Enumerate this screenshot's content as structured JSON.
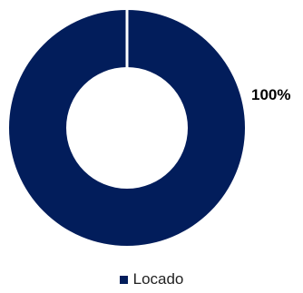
{
  "chart_data": {
    "type": "pie",
    "title": "",
    "labels": [
      "Locado"
    ],
    "values": [
      100
    ],
    "data_labels": [
      "100%"
    ],
    "colors": [
      "#021d5b"
    ],
    "donut": true,
    "legend_position": "bottom"
  }
}
